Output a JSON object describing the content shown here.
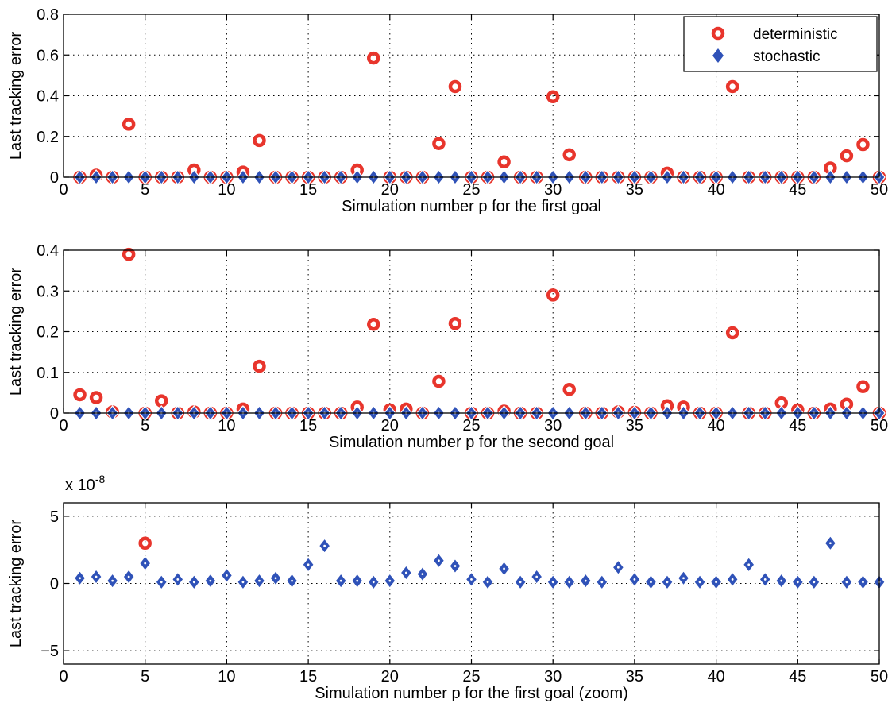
{
  "colors": {
    "deterministic": "#e8352c",
    "stochastic": "#2f52b8"
  },
  "chart_data": [
    {
      "type": "scatter",
      "xlabel": "Simulation number p for the first goal",
      "ylabel": "Last tracking error",
      "xlim": [
        0,
        50
      ],
      "ylim": [
        0,
        0.8
      ],
      "xticks": [
        0,
        5,
        10,
        15,
        20,
        25,
        30,
        35,
        40,
        45,
        50
      ],
      "yticks": [
        0,
        0.2,
        0.4,
        0.6,
        0.8
      ],
      "ytick_labels": [
        "0",
        "0.2",
        "0.4",
        "0.6",
        "0.8"
      ],
      "grid": true,
      "legend_position": "top-right",
      "legend": [
        "deterministic",
        "stochastic"
      ],
      "series": [
        {
          "name": "deterministic",
          "marker": "circle",
          "x": [
            1,
            2,
            3,
            4,
            5,
            6,
            7,
            8,
            9,
            10,
            11,
            12,
            13,
            14,
            15,
            16,
            17,
            18,
            19,
            20,
            21,
            22,
            23,
            24,
            25,
            26,
            27,
            28,
            29,
            30,
            31,
            32,
            33,
            34,
            35,
            36,
            37,
            38,
            39,
            40,
            41,
            42,
            43,
            44,
            45,
            46,
            47,
            48,
            49,
            50
          ],
          "y": [
            0,
            0.01,
            0,
            0.26,
            0,
            0,
            0,
            0.035,
            0,
            0,
            0.025,
            0.18,
            0,
            0,
            0,
            0,
            0,
            0.035,
            0.585,
            0,
            0,
            0,
            0.165,
            0.445,
            0,
            0,
            0.075,
            0,
            0,
            0.395,
            0.11,
            0,
            0,
            0,
            0,
            0,
            0.02,
            0,
            0,
            0,
            0.445,
            0,
            0,
            0,
            0,
            0,
            0.045,
            0.105,
            0.16,
            0
          ]
        },
        {
          "name": "stochastic",
          "marker": "diamond",
          "x": [
            1,
            2,
            3,
            4,
            5,
            6,
            7,
            8,
            9,
            10,
            11,
            12,
            13,
            14,
            15,
            16,
            17,
            18,
            19,
            20,
            21,
            22,
            23,
            24,
            25,
            26,
            27,
            28,
            29,
            30,
            31,
            32,
            33,
            34,
            35,
            36,
            37,
            38,
            39,
            40,
            41,
            42,
            43,
            44,
            45,
            46,
            47,
            48,
            49,
            50
          ],
          "y": [
            0,
            0,
            0,
            0,
            0,
            0,
            0,
            0,
            0,
            0,
            0,
            0,
            0,
            0,
            0,
            0,
            0,
            0,
            0,
            0,
            0,
            0,
            0,
            0,
            0,
            0,
            0,
            0,
            0,
            0,
            0,
            0,
            0,
            0,
            0,
            0,
            0,
            0,
            0,
            0,
            0,
            0,
            0,
            0,
            0,
            0,
            0,
            0,
            0,
            0
          ]
        }
      ]
    },
    {
      "type": "scatter",
      "xlabel": "Simulation number p for the second goal",
      "ylabel": "Last tracking error",
      "xlim": [
        0,
        50
      ],
      "ylim": [
        0,
        0.4
      ],
      "xticks": [
        0,
        5,
        10,
        15,
        20,
        25,
        30,
        35,
        40,
        45,
        50
      ],
      "yticks": [
        0,
        0.1,
        0.2,
        0.3,
        0.4
      ],
      "ytick_labels": [
        "0",
        "0.1",
        "0.2",
        "0.3",
        "0.4"
      ],
      "grid": true,
      "series": [
        {
          "name": "deterministic",
          "marker": "circle",
          "x": [
            1,
            2,
            3,
            4,
            5,
            6,
            7,
            8,
            9,
            10,
            11,
            12,
            13,
            14,
            15,
            16,
            17,
            18,
            19,
            20,
            21,
            22,
            23,
            24,
            25,
            26,
            27,
            28,
            29,
            30,
            31,
            32,
            33,
            34,
            35,
            36,
            37,
            38,
            39,
            40,
            41,
            42,
            43,
            44,
            45,
            46,
            47,
            48,
            49,
            50
          ],
          "y": [
            0.045,
            0.038,
            0.003,
            0.39,
            0,
            0.03,
            0,
            0.003,
            0,
            0,
            0.01,
            0.115,
            0,
            0,
            0,
            0,
            0,
            0.015,
            0.218,
            0.008,
            0.01,
            0,
            0.078,
            0.22,
            0,
            0,
            0.005,
            0,
            0,
            0.29,
            0.058,
            0,
            0,
            0.003,
            0.002,
            0,
            0.018,
            0.015,
            0,
            0,
            0.197,
            0,
            0,
            0.025,
            0.008,
            0,
            0.01,
            0.022,
            0.065,
            0
          ]
        },
        {
          "name": "stochastic",
          "marker": "diamond",
          "x": [
            1,
            2,
            3,
            4,
            5,
            6,
            7,
            8,
            9,
            10,
            11,
            12,
            13,
            14,
            15,
            16,
            17,
            18,
            19,
            20,
            21,
            22,
            23,
            24,
            25,
            26,
            27,
            28,
            29,
            30,
            31,
            32,
            33,
            34,
            35,
            36,
            37,
            38,
            39,
            40,
            41,
            42,
            43,
            44,
            45,
            46,
            47,
            48,
            49,
            50
          ],
          "y": [
            0,
            0,
            0,
            0,
            0,
            0,
            0,
            0,
            0,
            0,
            0,
            0,
            0,
            0,
            0,
            0,
            0,
            0,
            0,
            0,
            0,
            0,
            0,
            0,
            0,
            0,
            0,
            0,
            0,
            0,
            0,
            0,
            0,
            0,
            0,
            0,
            0,
            0,
            0,
            0,
            0,
            0,
            0,
            0,
            0,
            0,
            0,
            0,
            0,
            0
          ]
        }
      ]
    },
    {
      "type": "scatter",
      "xlabel": "Simulation number p for the first goal (zoom)",
      "ylabel": "Last tracking error",
      "exponent_label": "x 10",
      "exponent_power": "-8",
      "xlim": [
        0,
        50
      ],
      "ylim": [
        -6,
        6
      ],
      "xticks": [
        0,
        5,
        10,
        15,
        20,
        25,
        30,
        35,
        40,
        45,
        50
      ],
      "yticks": [
        -5,
        0,
        5
      ],
      "ytick_labels": [
        "−5",
        "0",
        "5"
      ],
      "grid": true,
      "series": [
        {
          "name": "deterministic",
          "marker": "circle",
          "x": [
            5
          ],
          "y": [
            3.0
          ]
        },
        {
          "name": "stochastic",
          "marker": "diamond",
          "x": [
            1,
            2,
            3,
            4,
            5,
            6,
            7,
            8,
            9,
            10,
            11,
            12,
            13,
            14,
            15,
            16,
            17,
            18,
            19,
            20,
            21,
            22,
            23,
            24,
            25,
            26,
            27,
            28,
            29,
            30,
            31,
            32,
            33,
            34,
            35,
            36,
            37,
            38,
            39,
            40,
            41,
            42,
            43,
            44,
            45,
            46,
            47,
            48,
            49,
            50
          ],
          "y": [
            0.4,
            0.5,
            0.2,
            0.5,
            1.5,
            0.1,
            0.3,
            0.1,
            0.2,
            0.6,
            0.1,
            0.2,
            0.4,
            0.2,
            1.4,
            2.8,
            0.2,
            0.2,
            0.1,
            0.2,
            0.8,
            0.7,
            1.7,
            1.3,
            0.3,
            0.1,
            1.1,
            0.1,
            0.5,
            0.1,
            0.1,
            0.2,
            0.1,
            1.2,
            0.3,
            0.1,
            0.1,
            0.4,
            0.1,
            0.1,
            0.3,
            1.4,
            0.3,
            0.2,
            0.1,
            0.1,
            3.0,
            0.1,
            0.1,
            0.1
          ]
        }
      ]
    }
  ]
}
